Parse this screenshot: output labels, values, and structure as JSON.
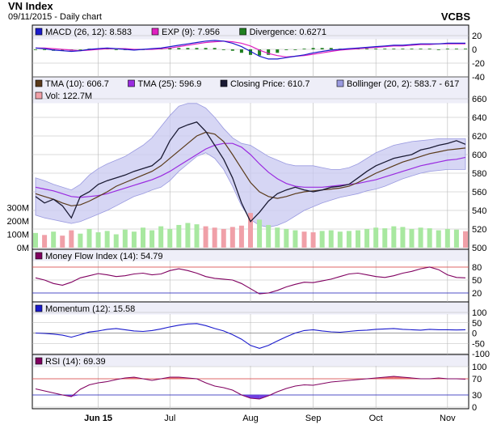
{
  "header": {
    "title": "VN Index",
    "subtitle": "09/11/2015 - Daily chart",
    "brand": "VCBS"
  },
  "colors": {
    "grid": "#b8b8b8",
    "panel_bg": "#eeeef8",
    "price_area_bg": "#ffffff",
    "price": "#1a1a33",
    "tma10": "#5a3a1a",
    "tma25": "#9a2be0",
    "bollinger_fill": "#c8c8f0",
    "bollinger_edge": "#9a9ae0",
    "vol_up": "#a8e8a0",
    "vol_down": "#f0a0a8",
    "macd": "#1a1acc",
    "exp": "#e020c0",
    "divergence": "#208020",
    "mfi": "#800060",
    "momentum": "#1a1acc",
    "rsi": "#800060",
    "overbought": "#e04040",
    "oversold": "#2020c0",
    "rsi_fill_high": "#e87070",
    "rsi_fill_low": "#7040e0"
  },
  "chart_data": [
    {
      "type": "line",
      "panel": "MACD",
      "legend": [
        {
          "label": "MACD (26, 12): 8.583",
          "color": "#1a1acc"
        },
        {
          "label": "EXP (9): 7.956",
          "color": "#e020c0"
        },
        {
          "label": "Divergence: 0.6271",
          "color": "#208020"
        }
      ],
      "ylim": [
        -40,
        20
      ],
      "yticks": [
        "20",
        "0",
        "-20",
        "-40"
      ],
      "series": [
        {
          "name": "MACD (26, 12)",
          "values": [
            2,
            1,
            -1,
            -2,
            -3,
            -2,
            0,
            1,
            2,
            1,
            0,
            -1,
            0,
            1,
            2,
            4,
            6,
            8,
            10,
            12,
            13,
            12,
            9,
            4,
            -3,
            -10,
            -14,
            -14,
            -12,
            -10,
            -8,
            -5,
            -3,
            -1,
            0,
            1,
            2,
            3,
            4,
            5,
            6,
            6,
            7,
            8,
            8,
            8,
            9,
            9,
            9
          ]
        },
        {
          "name": "EXP (9)",
          "values": [
            2,
            2,
            1,
            0,
            -1,
            -2,
            -1,
            0,
            1,
            1,
            1,
            0,
            0,
            0,
            1,
            2,
            4,
            6,
            8,
            10,
            11,
            12,
            11,
            9,
            5,
            -1,
            -6,
            -9,
            -11,
            -10,
            -9,
            -7,
            -5,
            -3,
            -1,
            0,
            1,
            2,
            3,
            4,
            5,
            5,
            6,
            7,
            7,
            8,
            8,
            8,
            8
          ]
        },
        {
          "name": "Divergence",
          "values": [
            0,
            -1,
            -2,
            -2,
            -2,
            0,
            1,
            1,
            1,
            0,
            -1,
            -1,
            0,
            1,
            1,
            2,
            2,
            2,
            2,
            2,
            2,
            0,
            -2,
            -5,
            -8,
            -9,
            -8,
            -5,
            -1,
            0,
            1,
            2,
            2,
            2,
            1,
            1,
            1,
            1,
            1,
            1,
            1,
            1,
            1,
            1,
            1,
            0,
            1,
            1,
            1
          ]
        }
      ]
    },
    {
      "type": "line",
      "panel": "Price",
      "legend": [
        {
          "label": "TMA (10): 606.7",
          "color": "#5a3a1a"
        },
        {
          "label": "TMA (25): 596.9",
          "color": "#9a2be0"
        },
        {
          "label": "Closing Price: 610.7",
          "color": "#1a1a33"
        },
        {
          "label": "Bollinger (20, 2): 583.7 - 617",
          "color": "#9a9ae0"
        },
        {
          "label": "Vol: 122.7M",
          "color": "#f0a0a8"
        }
      ],
      "ylim": [
        500,
        660
      ],
      "yticks": [
        "660",
        "640",
        "620",
        "600",
        "580",
        "560",
        "540",
        "520",
        "500"
      ],
      "volume_ticks": [
        "300M",
        "200M",
        "100M",
        "0M"
      ],
      "volume_max": 400,
      "x_labels": [
        {
          "label": "Jun 15",
          "index": 7
        },
        {
          "label": "Jul",
          "index": 15
        },
        {
          "label": "Aug",
          "index": 24
        },
        {
          "label": "Sep",
          "index": 31
        },
        {
          "label": "Oct",
          "index": 38
        },
        {
          "label": "Nov",
          "index": 46
        }
      ],
      "series": [
        {
          "name": "Closing Price",
          "values": [
            555,
            548,
            552,
            545,
            532,
            555,
            560,
            568,
            572,
            575,
            578,
            582,
            585,
            588,
            596,
            615,
            628,
            632,
            635,
            625,
            610,
            595,
            575,
            548,
            528,
            538,
            550,
            558,
            562,
            565,
            562,
            560,
            562,
            565,
            566,
            568,
            575,
            582,
            588,
            592,
            596,
            598,
            600,
            605,
            607,
            610,
            612,
            615,
            611
          ]
        },
        {
          "name": "TMA (10)",
          "values": [
            558,
            555,
            552,
            548,
            545,
            546,
            550,
            555,
            560,
            566,
            570,
            574,
            578,
            582,
            588,
            596,
            604,
            612,
            620,
            624,
            622,
            614,
            600,
            585,
            570,
            560,
            555,
            553,
            555,
            558,
            560,
            561,
            562,
            563,
            564,
            566,
            570,
            575,
            580,
            584,
            588,
            592,
            595,
            598,
            601,
            603,
            605,
            606,
            607
          ]
        },
        {
          "name": "TMA (25)",
          "values": [
            565,
            563,
            561,
            558,
            555,
            554,
            555,
            556,
            558,
            561,
            564,
            567,
            570,
            573,
            577,
            582,
            588,
            594,
            600,
            606,
            610,
            612,
            612,
            608,
            600,
            590,
            581,
            574,
            569,
            566,
            565,
            565,
            565,
            566,
            567,
            568,
            569,
            571,
            573,
            576,
            579,
            582,
            585,
            588,
            590,
            592,
            594,
            595,
            597
          ]
        },
        {
          "name": "Bollinger upper",
          "values": [
            575,
            572,
            568,
            565,
            562,
            568,
            578,
            585,
            590,
            594,
            598,
            604,
            610,
            618,
            630,
            642,
            652,
            655,
            655,
            650,
            640,
            628,
            618,
            612,
            610,
            604,
            598,
            594,
            590,
            588,
            588,
            588,
            586,
            584,
            584,
            586,
            590,
            596,
            602,
            606,
            610,
            612,
            614,
            615,
            616,
            617,
            617,
            617,
            617
          ]
        },
        {
          "name": "Bollinger lower",
          "values": [
            535,
            532,
            530,
            528,
            526,
            528,
            532,
            536,
            540,
            545,
            550,
            555,
            558,
            562,
            565,
            572,
            582,
            590,
            598,
            602,
            596,
            584,
            566,
            545,
            530,
            524,
            522,
            524,
            528,
            534,
            540,
            544,
            548,
            551,
            554,
            556,
            558,
            561,
            563,
            566,
            570,
            574,
            577,
            580,
            582,
            583,
            584,
            584,
            584
          ]
        },
        {
          "name": "Vol",
          "values": [
            110,
            95,
            120,
            90,
            130,
            105,
            140,
            115,
            125,
            100,
            135,
            120,
            150,
            130,
            160,
            140,
            170,
            185,
            175,
            160,
            150,
            140,
            155,
            165,
            260,
            210,
            170,
            150,
            140,
            130,
            120,
            115,
            125,
            130,
            120,
            125,
            130,
            140,
            150,
            145,
            160,
            155,
            140,
            150,
            145,
            130,
            140,
            135,
            123
          ]
        }
      ]
    },
    {
      "type": "line",
      "panel": "MFI",
      "legend": [
        {
          "label": "Money Flow Index (14): 54.79",
          "color": "#800060"
        }
      ],
      "ylim": [
        0,
        100
      ],
      "yticks": [
        "80",
        "50",
        "20"
      ],
      "series": [
        {
          "name": "Money Flow Index (14)",
          "values": [
            55,
            50,
            42,
            38,
            45,
            55,
            60,
            65,
            62,
            58,
            60,
            64,
            66,
            62,
            64,
            72,
            76,
            72,
            66,
            58,
            54,
            52,
            50,
            42,
            30,
            18,
            20,
            26,
            34,
            40,
            45,
            44,
            48,
            52,
            58,
            64,
            66,
            62,
            58,
            56,
            60,
            66,
            70,
            76,
            80,
            74,
            62,
            56,
            55
          ]
        }
      ]
    },
    {
      "type": "line",
      "panel": "Momentum",
      "legend": [
        {
          "label": "Momentum (12): 15.58",
          "color": "#1a1acc"
        }
      ],
      "ylim": [
        -100,
        100
      ],
      "yticks": [
        "100",
        "50",
        "0",
        "-50",
        "-100"
      ],
      "series": [
        {
          "name": "Momentum (12)",
          "values": [
            0,
            -2,
            -5,
            -10,
            -20,
            -8,
            5,
            10,
            18,
            22,
            16,
            10,
            8,
            12,
            20,
            30,
            38,
            44,
            46,
            36,
            22,
            10,
            -8,
            -30,
            -60,
            -74,
            -60,
            -38,
            -18,
            0,
            12,
            16,
            10,
            6,
            4,
            8,
            12,
            14,
            18,
            20,
            22,
            18,
            16,
            14,
            18,
            16,
            16,
            15,
            16
          ]
        }
      ]
    },
    {
      "type": "line",
      "panel": "RSI",
      "legend": [
        {
          "label": "RSI (14): 69.39",
          "color": "#800060"
        }
      ],
      "ylim": [
        0,
        100
      ],
      "yticks": [
        "100",
        "70",
        "30",
        "0"
      ],
      "series": [
        {
          "name": "RSI (14)",
          "values": [
            45,
            40,
            35,
            30,
            26,
            44,
            55,
            60,
            63,
            68,
            72,
            74,
            70,
            66,
            70,
            74,
            74,
            72,
            70,
            60,
            52,
            48,
            42,
            30,
            22,
            20,
            28,
            38,
            46,
            52,
            55,
            54,
            58,
            62,
            64,
            66,
            68,
            70,
            72,
            74,
            76,
            74,
            72,
            70,
            70,
            72,
            70,
            70,
            69
          ]
        }
      ]
    }
  ]
}
